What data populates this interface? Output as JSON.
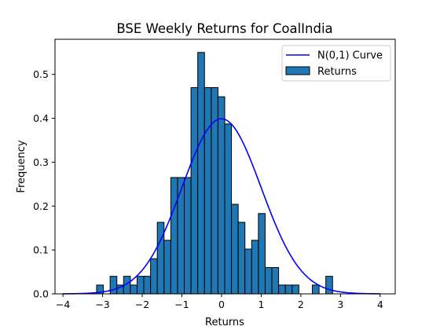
{
  "chart_data": {
    "type": "bar",
    "title": "BSE Weekly Returns for CoalIndia",
    "xlabel": "Returns",
    "ylabel": "Frequency",
    "xlim": [
      -4.2,
      4.38
    ],
    "ylim": [
      0,
      0.58
    ],
    "xticks": [
      -4,
      -3,
      -2,
      -1,
      0,
      1,
      2,
      3,
      4
    ],
    "yticks": [
      0.0,
      0.1,
      0.2,
      0.3,
      0.4,
      0.5
    ],
    "legend_position": "top-right",
    "bar_color": "#1f77b4",
    "curve_color": "#0000ff",
    "series": [
      {
        "name": "Returns",
        "kind": "histogram",
        "bins": [
          {
            "x0": -3.15,
            "x1": -2.98,
            "value": 0.02
          },
          {
            "x0": -2.98,
            "x1": -2.81,
            "value": 0.0
          },
          {
            "x0": -2.81,
            "x1": -2.64,
            "value": 0.04
          },
          {
            "x0": -2.64,
            "x1": -2.47,
            "value": 0.02
          },
          {
            "x0": -2.47,
            "x1": -2.3,
            "value": 0.04
          },
          {
            "x0": -2.3,
            "x1": -2.13,
            "value": 0.02
          },
          {
            "x0": -2.13,
            "x1": -1.96,
            "value": 0.04
          },
          {
            "x0": -1.96,
            "x1": -1.79,
            "value": 0.04
          },
          {
            "x0": -1.79,
            "x1": -1.62,
            "value": 0.08
          },
          {
            "x0": -1.62,
            "x1": -1.45,
            "value": 0.163
          },
          {
            "x0": -1.45,
            "x1": -1.28,
            "value": 0.122
          },
          {
            "x0": -1.28,
            "x1": -1.11,
            "value": 0.265
          },
          {
            "x0": -1.11,
            "x1": -0.94,
            "value": 0.265
          },
          {
            "x0": -0.94,
            "x1": -0.77,
            "value": 0.265
          },
          {
            "x0": -0.77,
            "x1": -0.6,
            "value": 0.47
          },
          {
            "x0": -0.6,
            "x1": -0.43,
            "value": 0.55
          },
          {
            "x0": -0.43,
            "x1": -0.26,
            "value": 0.47
          },
          {
            "x0": -0.26,
            "x1": -0.09,
            "value": 0.47
          },
          {
            "x0": -0.09,
            "x1": 0.08,
            "value": 0.449
          },
          {
            "x0": 0.08,
            "x1": 0.25,
            "value": 0.387
          },
          {
            "x0": 0.25,
            "x1": 0.42,
            "value": 0.204
          },
          {
            "x0": 0.42,
            "x1": 0.59,
            "value": 0.163
          },
          {
            "x0": 0.59,
            "x1": 0.76,
            "value": 0.102
          },
          {
            "x0": 0.76,
            "x1": 0.93,
            "value": 0.122
          },
          {
            "x0": 0.93,
            "x1": 1.1,
            "value": 0.183
          },
          {
            "x0": 1.1,
            "x1": 1.27,
            "value": 0.06
          },
          {
            "x0": 1.27,
            "x1": 1.44,
            "value": 0.06
          },
          {
            "x0": 1.44,
            "x1": 1.61,
            "value": 0.02
          },
          {
            "x0": 1.61,
            "x1": 1.78,
            "value": 0.02
          },
          {
            "x0": 1.78,
            "x1": 1.95,
            "value": 0.02
          },
          {
            "x0": 1.95,
            "x1": 2.12,
            "value": 0.0
          },
          {
            "x0": 2.12,
            "x1": 2.29,
            "value": 0.0
          },
          {
            "x0": 2.29,
            "x1": 2.46,
            "value": 0.02
          },
          {
            "x0": 2.46,
            "x1": 2.63,
            "value": 0.0
          },
          {
            "x0": 2.63,
            "x1": 2.8,
            "value": 0.04
          }
        ]
      },
      {
        "name": "N(0,1) Curve",
        "kind": "line",
        "x_range": [
          -4,
          4
        ],
        "function": "standard normal pdf"
      }
    ]
  }
}
